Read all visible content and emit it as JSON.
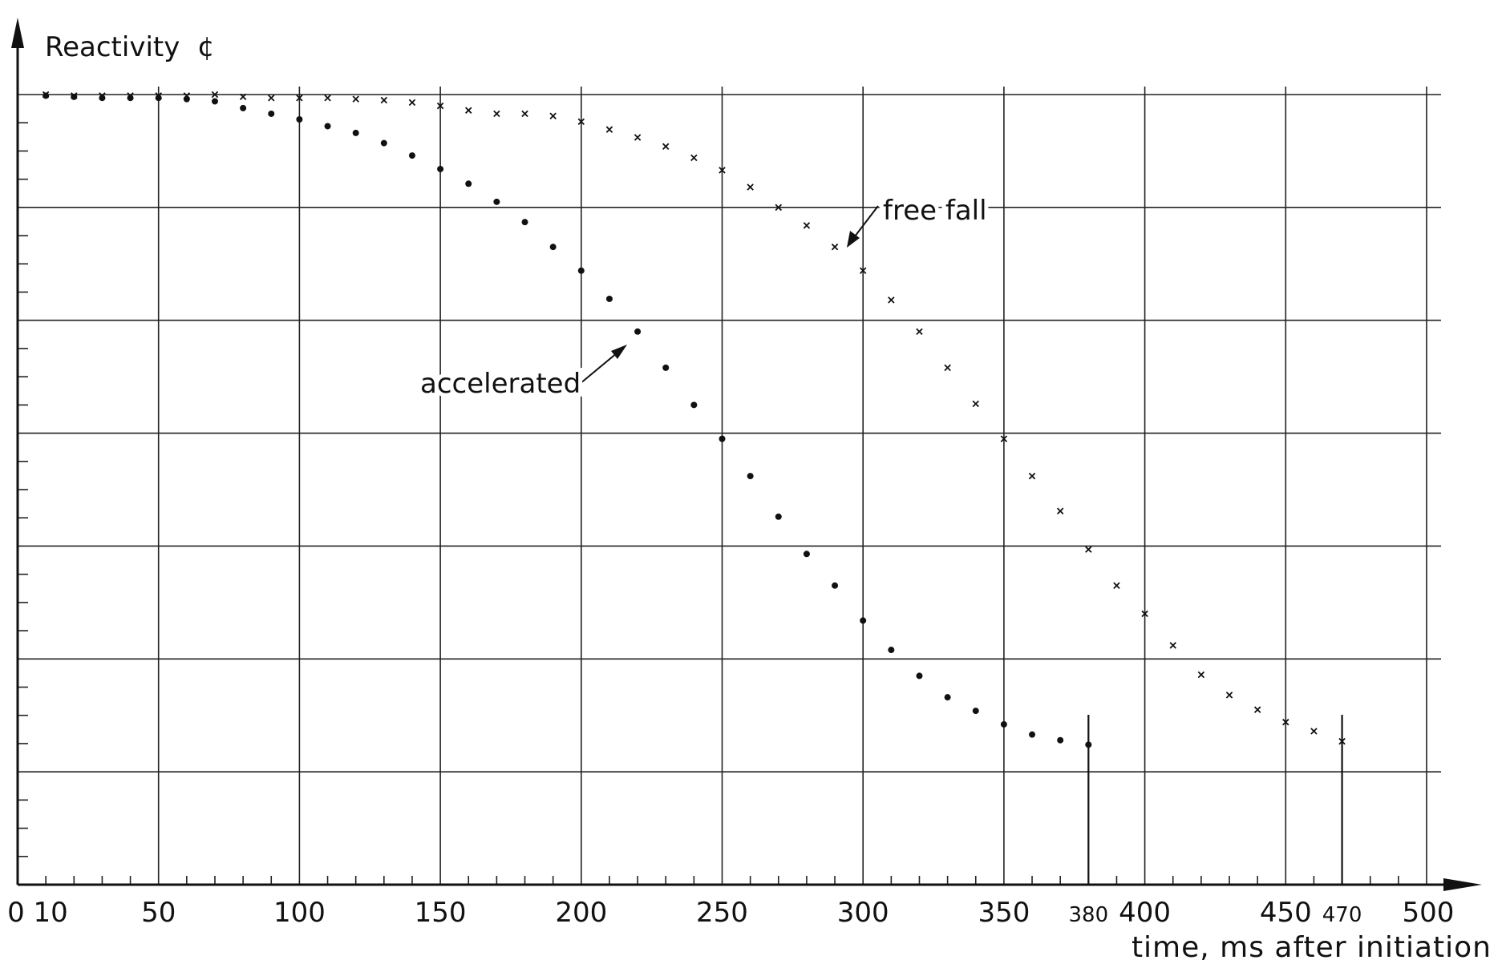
{
  "chart_data": {
    "type": "scatter",
    "title": "",
    "ylabel": "Reactivity  ¢",
    "xlabel": "time, ms after initiation",
    "xlim": [
      0,
      500
    ],
    "ylim": [
      -7,
      0
    ],
    "x_tick_labels": [
      "0",
      "10",
      "50",
      "100",
      "150",
      "200",
      "250",
      "300",
      "350",
      "380",
      "400",
      "450",
      "470",
      "500"
    ],
    "x_tick_values": [
      0,
      10,
      50,
      100,
      150,
      200,
      250,
      300,
      350,
      380,
      400,
      450,
      470,
      500
    ],
    "y_tick_labels": [],
    "grid": true,
    "markers": {
      "accelerated": "dot",
      "free fall": "x"
    },
    "annotations": [
      {
        "text": "free fall",
        "series": "free fall",
        "x": 290,
        "y": -1.38
      },
      {
        "text": "accelerated",
        "series": "accelerated",
        "x": 220,
        "y": -2.17
      }
    ],
    "vertical_markers": [
      380,
      470
    ],
    "series": [
      {
        "name": "accelerated",
        "x": [
          10,
          20,
          30,
          40,
          50,
          60,
          70,
          80,
          90,
          100,
          110,
          120,
          130,
          140,
          150,
          160,
          170,
          180,
          190,
          200,
          210,
          220,
          230,
          240,
          250,
          260,
          270,
          280,
          290,
          300,
          310,
          320,
          330,
          340,
          350,
          360,
          370,
          380
        ],
        "values": [
          -0.01,
          -0.02,
          -0.03,
          -0.03,
          -0.03,
          -0.04,
          -0.06,
          -0.12,
          -0.17,
          -0.22,
          -0.28,
          -0.34,
          -0.43,
          -0.54,
          -0.66,
          -0.79,
          -0.95,
          -1.13,
          -1.35,
          -1.56,
          -1.81,
          -2.1,
          -2.42,
          -2.75,
          -3.05,
          -3.38,
          -3.74,
          -4.07,
          -4.35,
          -4.66,
          -4.92,
          -5.15,
          -5.34,
          -5.46,
          -5.58,
          -5.67,
          -5.72,
          -5.76
        ]
      },
      {
        "name": "free fall",
        "x": [
          10,
          20,
          30,
          40,
          50,
          60,
          70,
          80,
          90,
          100,
          110,
          120,
          130,
          140,
          150,
          160,
          170,
          180,
          190,
          200,
          210,
          220,
          230,
          240,
          250,
          260,
          270,
          280,
          290,
          300,
          310,
          320,
          330,
          340,
          350,
          360,
          370,
          380,
          390,
          400,
          410,
          420,
          430,
          440,
          450,
          460,
          470
        ],
        "values": [
          0,
          -0.01,
          -0.01,
          -0.01,
          -0.01,
          -0.01,
          0,
          -0.02,
          -0.03,
          -0.03,
          -0.03,
          -0.04,
          -0.05,
          -0.07,
          -0.1,
          -0.14,
          -0.17,
          -0.17,
          -0.19,
          -0.24,
          -0.31,
          -0.38,
          -0.46,
          -0.56,
          -0.67,
          -0.82,
          -1.0,
          -1.16,
          -1.35,
          -1.56,
          -1.82,
          -2.1,
          -2.42,
          -2.74,
          -3.05,
          -3.38,
          -3.69,
          -4.03,
          -4.35,
          -4.6,
          -4.88,
          -5.14,
          -5.32,
          -5.45,
          -5.56,
          -5.64,
          -5.73
        ]
      }
    ]
  }
}
